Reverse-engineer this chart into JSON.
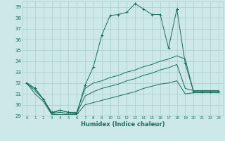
{
  "xlabel": "Humidex (Indice chaleur)",
  "x_hours": [
    0,
    1,
    2,
    3,
    4,
    5,
    6,
    7,
    8,
    9,
    10,
    11,
    12,
    13,
    14,
    15,
    16,
    17,
    18,
    19,
    20,
    21,
    22,
    23
  ],
  "line1_y": [
    32.0,
    31.5,
    30.5,
    29.3,
    29.5,
    29.3,
    29.2,
    31.8,
    33.5,
    36.4,
    38.2,
    38.3,
    38.5,
    39.3,
    38.8,
    38.3,
    38.3,
    35.2,
    38.8,
    33.8,
    31.2,
    31.2,
    31.2,
    31.2
  ],
  "line2_y": [
    32.0,
    31.5,
    30.5,
    29.2,
    29.5,
    29.3,
    29.3,
    31.5,
    32.0,
    32.2,
    32.5,
    32.7,
    33.0,
    33.2,
    33.5,
    33.7,
    34.0,
    34.2,
    34.5,
    34.2,
    31.2,
    31.2,
    31.2,
    31.2
  ],
  "line3_y": [
    32.0,
    31.3,
    30.5,
    29.2,
    29.3,
    29.2,
    29.2,
    30.8,
    31.2,
    31.5,
    31.7,
    31.9,
    32.2,
    32.4,
    32.7,
    32.9,
    33.2,
    33.4,
    33.7,
    31.5,
    31.3,
    31.3,
    31.3,
    31.3
  ],
  "line4_y": [
    32.0,
    31.0,
    30.3,
    29.1,
    29.1,
    29.1,
    29.1,
    30.0,
    30.2,
    30.4,
    30.6,
    30.8,
    31.0,
    31.2,
    31.5,
    31.7,
    31.9,
    32.0,
    32.2,
    31.0,
    31.1,
    31.1,
    31.1,
    31.1
  ],
  "line_color": "#1a6b5a",
  "bg_color": "#cce8e8",
  "grid_color": "#aacece",
  "ylim": [
    29,
    39.5
  ],
  "yticks": [
    29,
    30,
    31,
    32,
    33,
    34,
    35,
    36,
    37,
    38,
    39
  ],
  "xticks": [
    0,
    1,
    2,
    3,
    4,
    5,
    6,
    7,
    8,
    9,
    10,
    11,
    12,
    13,
    14,
    15,
    16,
    17,
    18,
    19,
    20,
    21,
    22,
    23
  ]
}
